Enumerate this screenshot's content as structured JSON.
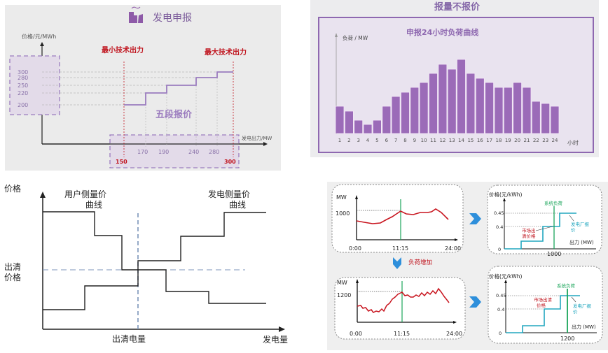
{
  "panel_bid": {
    "title": "发电申报",
    "y_axis_label": "价格/元/MWh",
    "x_axis_label": "发电出力/MW",
    "min_label": "最小技术出力",
    "max_label": "最大技术出力",
    "center_label": "五段报价",
    "price_ticks": [
      "300",
      "280",
      "250",
      "220",
      "200"
    ],
    "output_ticks": [
      "170",
      "190",
      "240",
      "280"
    ],
    "min_value": "150",
    "max_value": "300"
  },
  "panel_load": {
    "title": "报量不报价",
    "subtitle": "申报24小时负荷曲线",
    "y_axis_label": "负荷 / MW",
    "x_axis_label": "小时"
  },
  "panel_clearing": {
    "y_axis_label": "价格",
    "x_axis_label": "发电量",
    "clearing_price_line1": "出清",
    "clearing_price_line2": "价格",
    "clearing_quantity": "出清电量",
    "user_curve_line1": "用户侧量价",
    "user_curve_line2": "曲线",
    "gen_curve_line1": "发电侧量价",
    "gen_curve_line2": "曲线"
  },
  "panel_example": {
    "load_increase_label": "负荷增加",
    "top_load": {
      "y_unit": "MW",
      "ref_value": "1000",
      "x_start": "0:00",
      "x_mid": "11:15",
      "x_end": "24:00"
    },
    "bottom_load": {
      "y_unit": "MW",
      "ref_value": "1200",
      "x_start": "0:00",
      "x_mid": "11:15",
      "x_end": "24:00"
    },
    "top_price": {
      "y_axis": "价格(元/kWh)",
      "p_high": "0.45",
      "p_mid": "0.4",
      "p_zero": "0",
      "x_axis": "出力 (MW)",
      "x_value": "1000",
      "system_load": "系统负荷",
      "market_price_1": "市场出",
      "market_price_2": "清价格",
      "plant_bid_1": "发电厂报",
      "plant_bid_2": "价"
    },
    "bottom_price": {
      "y_axis": "价格(元/kWh)",
      "p_high": "0.45",
      "p_mid": "0.4",
      "p_zero": "0",
      "x_axis": "出力 (MW)",
      "x_value": "1200",
      "system_load": "系统负荷",
      "market_price_1": "市场出清",
      "market_price_2": "价格",
      "plant_bid_1": "发电厂报",
      "plant_bid_2": "价"
    }
  },
  "colors": {
    "purple": "#9b6bb8",
    "red": "#c0141e",
    "teal": "#22a7bf",
    "green": "#1aa55a",
    "chevron": "#2e8fdb"
  },
  "chart_data": [
    {
      "type": "line",
      "title": "发电申报 — 五段报价",
      "xlabel": "发电出力/MW",
      "ylabel": "价格/元/MWh",
      "series": [
        {
          "name": "五段报价 (step)",
          "x": [
            150,
            170,
            170,
            190,
            190,
            240,
            240,
            280,
            280,
            300
          ],
          "y": [
            200,
            200,
            220,
            220,
            250,
            250,
            280,
            280,
            300,
            300
          ]
        }
      ],
      "annotations": [
        "最小技术出力 150",
        "最大技术出力 300"
      ]
    },
    {
      "type": "bar",
      "title": "申报24小时负荷曲线",
      "xlabel": "小时",
      "ylabel": "负荷 / MW",
      "categories": [
        "1",
        "2",
        "3",
        "4",
        "5",
        "6",
        "7",
        "8",
        "9",
        "10",
        "11",
        "12",
        "13",
        "14",
        "15",
        "16",
        "17",
        "18",
        "19",
        "20",
        "21",
        "22",
        "23",
        "24"
      ],
      "values": [
        39,
        32,
        19,
        13,
        19,
        39,
        53,
        59,
        66,
        73,
        86,
        99,
        92,
        106,
        86,
        79,
        73,
        66,
        66,
        73,
        66,
        46,
        43,
        39
      ],
      "note": "relative bar heights in px; no numeric y ticks shown"
    }
  ]
}
